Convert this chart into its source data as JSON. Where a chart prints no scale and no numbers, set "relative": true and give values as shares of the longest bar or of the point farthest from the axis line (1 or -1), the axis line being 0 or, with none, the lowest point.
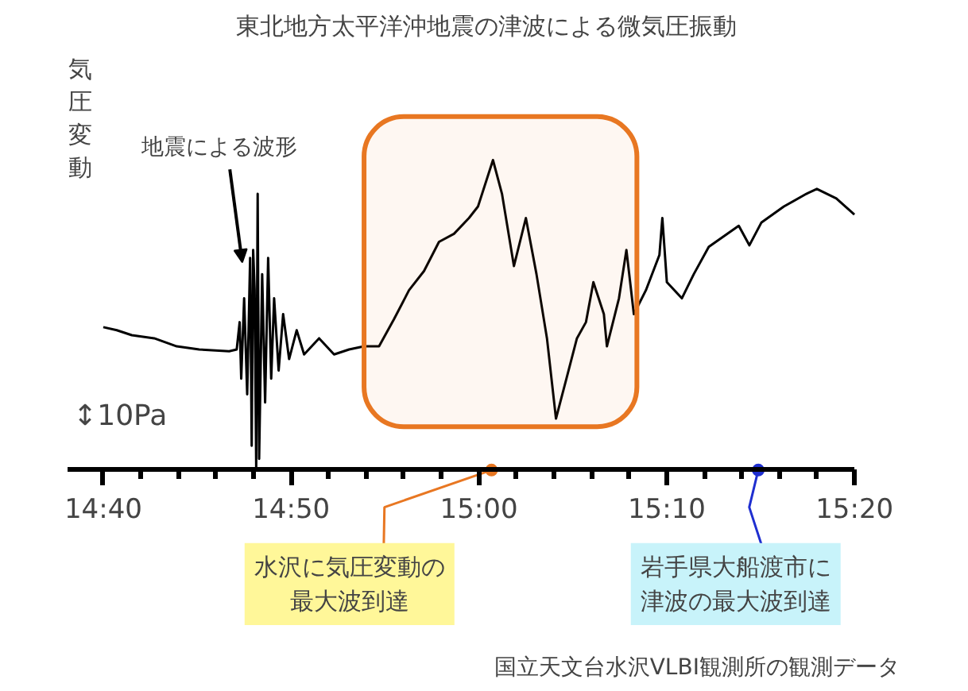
{
  "chart_data": {
    "type": "line",
    "title": "東北地方太平洋沖地震の津波による微気圧振動",
    "ylabel": "気圧変動",
    "relative": true,
    "grid": false,
    "marker": "none",
    "line_style": "solid",
    "xlim": [
      14.635,
      15.3333
    ],
    "xticks": [
      {
        "value": 14.6667,
        "label": "14:40"
      },
      {
        "value": 14.7,
        "label": null
      },
      {
        "value": 14.7333,
        "label": null
      },
      {
        "value": 14.7667,
        "label": null
      },
      {
        "value": 14.8,
        "label": null
      },
      {
        "value": 14.8333,
        "label": "14:50"
      },
      {
        "value": 14.8667,
        "label": null
      },
      {
        "value": 14.9,
        "label": null
      },
      {
        "value": 14.9333,
        "label": null
      },
      {
        "value": 14.9667,
        "label": null
      },
      {
        "value": 15.0,
        "label": "15:00"
      },
      {
        "value": 15.0333,
        "label": null
      },
      {
        "value": 15.0667,
        "label": null
      },
      {
        "value": 15.1,
        "label": null
      },
      {
        "value": 15.1333,
        "label": null
      },
      {
        "value": 15.1667,
        "label": "15:10"
      },
      {
        "value": 15.2,
        "label": null
      },
      {
        "value": 15.2333,
        "label": null
      },
      {
        "value": 15.2667,
        "label": null
      },
      {
        "value": 15.3,
        "label": null
      },
      {
        "value": 15.3333,
        "label": "15:20"
      }
    ],
    "series": [
      {
        "color": "#000000",
        "x": [
          14.6667,
          14.6787,
          14.692,
          14.7119,
          14.7319,
          14.7518,
          14.7784,
          14.7851,
          14.7877,
          14.7891,
          14.7917,
          14.7944,
          14.797,
          14.7984,
          14.7997,
          14.801,
          14.8024,
          14.8037,
          14.805,
          14.8077,
          14.8103,
          14.813,
          14.8157,
          14.8183,
          14.8223,
          14.8263,
          14.8316,
          14.8383,
          14.8449,
          14.8582,
          14.8715,
          14.8848,
          14.8981,
          14.9114,
          14.9247,
          14.938,
          14.9513,
          14.9646,
          14.9779,
          14.9912,
          14.9992,
          15.0125,
          15.0205,
          15.0311,
          15.0417,
          15.0511,
          15.0604,
          15.0684,
          15.0777,
          15.087,
          15.095,
          15.1016,
          15.1109,
          15.1136,
          15.1243,
          15.1309,
          15.1375,
          15.1482,
          15.1602,
          15.1628,
          15.1668,
          15.1801,
          15.1907,
          15.204,
          15.2306,
          15.24,
          15.2506,
          15.2706,
          15.2906,
          15.2999,
          15.3172,
          15.3332
        ],
        "values": [
          0.461,
          0.451,
          0.435,
          0.425,
          0.399,
          0.389,
          0.383,
          0.389,
          0.477,
          0.295,
          0.554,
          0.244,
          0.684,
          0.078,
          0.71,
          0.58,
          0.01,
          0.891,
          0.036,
          0.632,
          0.218,
          0.684,
          0.295,
          0.554,
          0.321,
          0.503,
          0.358,
          0.451,
          0.373,
          0.425,
          0.373,
          0.389,
          0.399,
          0.399,
          0.487,
          0.58,
          0.642,
          0.736,
          0.762,
          0.813,
          0.85,
          1.0,
          0.891,
          0.658,
          0.813,
          0.632,
          0.425,
          0.166,
          0.295,
          0.425,
          0.477,
          0.606,
          0.503,
          0.399,
          0.554,
          0.71,
          0.503,
          0.58,
          0.694,
          0.813,
          0.606,
          0.554,
          0.632,
          0.72,
          0.788,
          0.725,
          0.798,
          0.85,
          0.891,
          0.907,
          0.876,
          0.824
        ]
      }
    ],
    "bands": [
      {
        "axis": "x",
        "from": 14.8981,
        "to": 15.1402,
        "color": "#e87722"
      }
    ],
    "annotations": [
      {
        "text": "地震による波形",
        "x": 14.79,
        "y": 0.67
      },
      "↕10Pa",
      {
        "text": "水沢に気圧変動の最大波到達",
        "x": 15.0112,
        "y": 0
      },
      {
        "text": "岩手県大船渡市に津波の最大波到達",
        "x": 15.2479,
        "y": 0
      },
      "国立天文台水沢VLBI観測所の観測データ"
    ]
  }
}
